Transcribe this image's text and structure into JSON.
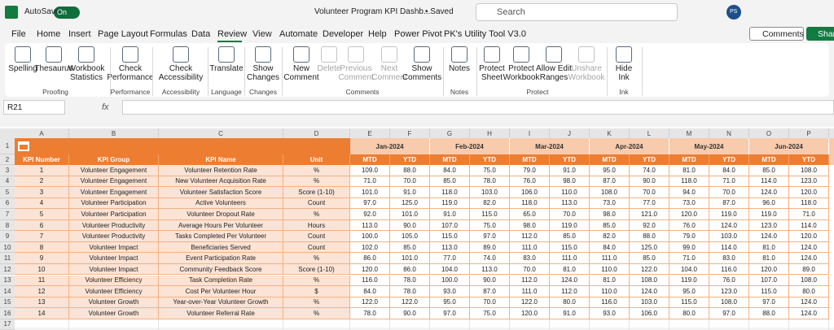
{
  "title_bar": {
    "autosave": "AutoSave",
    "toggle": "On",
    "filename": "Volunteer Program KPI Dashb...",
    "saved": "• Saved",
    "search": "Search",
    "user": "PS"
  },
  "menu": [
    "File",
    "Home",
    "Insert",
    "Page Layout",
    "Formulas",
    "Data",
    "Review",
    "View",
    "Automate",
    "Developer",
    "Help",
    "Power Pivot",
    "PK's Utility Tool V3.0"
  ],
  "comments_button": "Comments",
  "share_button": "Shar",
  "ribbon": {
    "buttons": [
      "Spelling",
      "Thesaurus",
      "Workbook\nStatistics",
      "Check\nPerformance",
      "Check\nAccessibility",
      "Translate",
      "Show\nChanges",
      "New\nComment",
      "Delete",
      "Previous\nComment",
      "Next\nComment",
      "Show\nComments",
      "Notes",
      "Protect\nSheet",
      "Protect\nWorkbook",
      "Allow Edit\nRanges",
      "Unshare\nWorkbook",
      "Hide\nInk"
    ],
    "groups": [
      "Proofing",
      "Performance",
      "Accessibility",
      "Language",
      "Changes",
      "Comments",
      "Notes",
      "Protect",
      "Ink"
    ]
  },
  "name_box": "R21",
  "fx": "fx",
  "sheet": {
    "columns": [
      "A",
      "B",
      "C",
      "D",
      "E",
      "F",
      "G",
      "H",
      "I",
      "J",
      "K",
      "L",
      "M",
      "N",
      "O",
      "P"
    ],
    "row_numbers": [
      1,
      2,
      3,
      4,
      5,
      6,
      7,
      8,
      9,
      10,
      11,
      12,
      13,
      14,
      15,
      16,
      17
    ],
    "months": [
      "Jan-2024",
      "Feb-2024",
      "Mar-2024",
      "Apr-2024",
      "May-2024",
      "Jun-2024"
    ],
    "subheaders": [
      "MTD",
      "YTD"
    ],
    "headers": [
      "KPI Number",
      "KPI Group",
      "KPI Name",
      "Unit"
    ],
    "rows": [
      [
        1,
        "Volunteer Engagement",
        "Volunteer Retention Rate",
        "%",
        "109.0",
        "88.0",
        "84.0",
        "75.0",
        "79.0",
        "91.0",
        "95.0",
        "74.0",
        "81.0",
        "84.0",
        "85.0",
        "108.0"
      ],
      [
        2,
        "Volunteer Engagement",
        "New Volunteer Acquisition Rate",
        "%",
        "71.0",
        "70.0",
        "85.0",
        "78.0",
        "76.0",
        "98.0",
        "87.0",
        "90.0",
        "118.0",
        "71.0",
        "114.0",
        "123.0"
      ],
      [
        3,
        "Volunteer Engagement",
        "Volunteer Satisfaction Score",
        "Score (1-10)",
        "101.0",
        "91.0",
        "118.0",
        "103.0",
        "106.0",
        "110.0",
        "108.0",
        "70.0",
        "94.0",
        "70.0",
        "124.0",
        "120.0"
      ],
      [
        4,
        "Volunteer Participation",
        "Active Volunteers",
        "Count",
        "97.0",
        "125.0",
        "119.0",
        "82.0",
        "118.0",
        "113.0",
        "73.0",
        "77.0",
        "73.0",
        "87.0",
        "96.0",
        "118.0"
      ],
      [
        5,
        "Volunteer Participation",
        "Volunteer Dropout Rate",
        "%",
        "92.0",
        "101.0",
        "91.0",
        "115.0",
        "65.0",
        "70.0",
        "98.0",
        "121.0",
        "120.0",
        "119.0",
        "119.0",
        "71.0"
      ],
      [
        6,
        "Volunteer Productivity",
        "Average Hours Per Volunteer",
        "Hours",
        "113.0",
        "90.0",
        "107.0",
        "75.0",
        "98.0",
        "119.0",
        "85.0",
        "92.0",
        "76.0",
        "124.0",
        "123.0",
        "114.0"
      ],
      [
        7,
        "Volunteer Productivity",
        "Tasks Completed Per Volunteer",
        "Count",
        "100.0",
        "105.0",
        "115.0",
        "97.0",
        "112.0",
        "85.0",
        "82.0",
        "88.0",
        "79.0",
        "103.0",
        "124.0",
        "120.0"
      ],
      [
        8,
        "Volunteer Impact",
        "Beneficiaries Served",
        "Count",
        "102.0",
        "85.0",
        "113.0",
        "89.0",
        "111.0",
        "115.0",
        "84.0",
        "125.0",
        "99.0",
        "114.0",
        "81.0",
        "124.0"
      ],
      [
        9,
        "Volunteer Impact",
        "Event Participation Rate",
        "%",
        "86.0",
        "101.0",
        "77.0",
        "74.0",
        "83.0",
        "111.0",
        "111.0",
        "85.0",
        "71.0",
        "83.0",
        "81.0",
        "124.0"
      ],
      [
        10,
        "Volunteer Impact",
        "Community Feedback Score",
        "Score (1-10)",
        "120.0",
        "86.0",
        "104.0",
        "113.0",
        "70.0",
        "81.0",
        "110.0",
        "122.0",
        "104.0",
        "116.0",
        "120.0",
        "89.0"
      ],
      [
        11,
        "Volunteer Efficiency",
        "Task Completion Rate",
        "%",
        "116.0",
        "78.0",
        "100.0",
        "90.0",
        "112.0",
        "124.0",
        "81.0",
        "108.0",
        "119.0",
        "76.0",
        "107.0",
        "108.0"
      ],
      [
        12,
        "Volunteer Efficiency",
        "Cost Per Volunteer Hour",
        "$",
        "84.0",
        "78.0",
        "93.0",
        "87.0",
        "111.0",
        "112.0",
        "110.0",
        "124.0",
        "95.0",
        "123.0",
        "115.0",
        "80.0"
      ],
      [
        13,
        "Volunteer Growth",
        "Year-over-Year Volunteer Growth",
        "%",
        "122.0",
        "122.0",
        "95.0",
        "70.0",
        "122.0",
        "80.0",
        "116.0",
        "103.0",
        "115.0",
        "108.0",
        "97.0",
        "124.0"
      ],
      [
        14,
        "Volunteer Growth",
        "Volunteer Referral Rate",
        "%",
        "78.0",
        "90.0",
        "97.0",
        "75.0",
        "120.0",
        "91.0",
        "93.0",
        "106.0",
        "80.0",
        "97.0",
        "88.0",
        "124.0"
      ]
    ]
  }
}
